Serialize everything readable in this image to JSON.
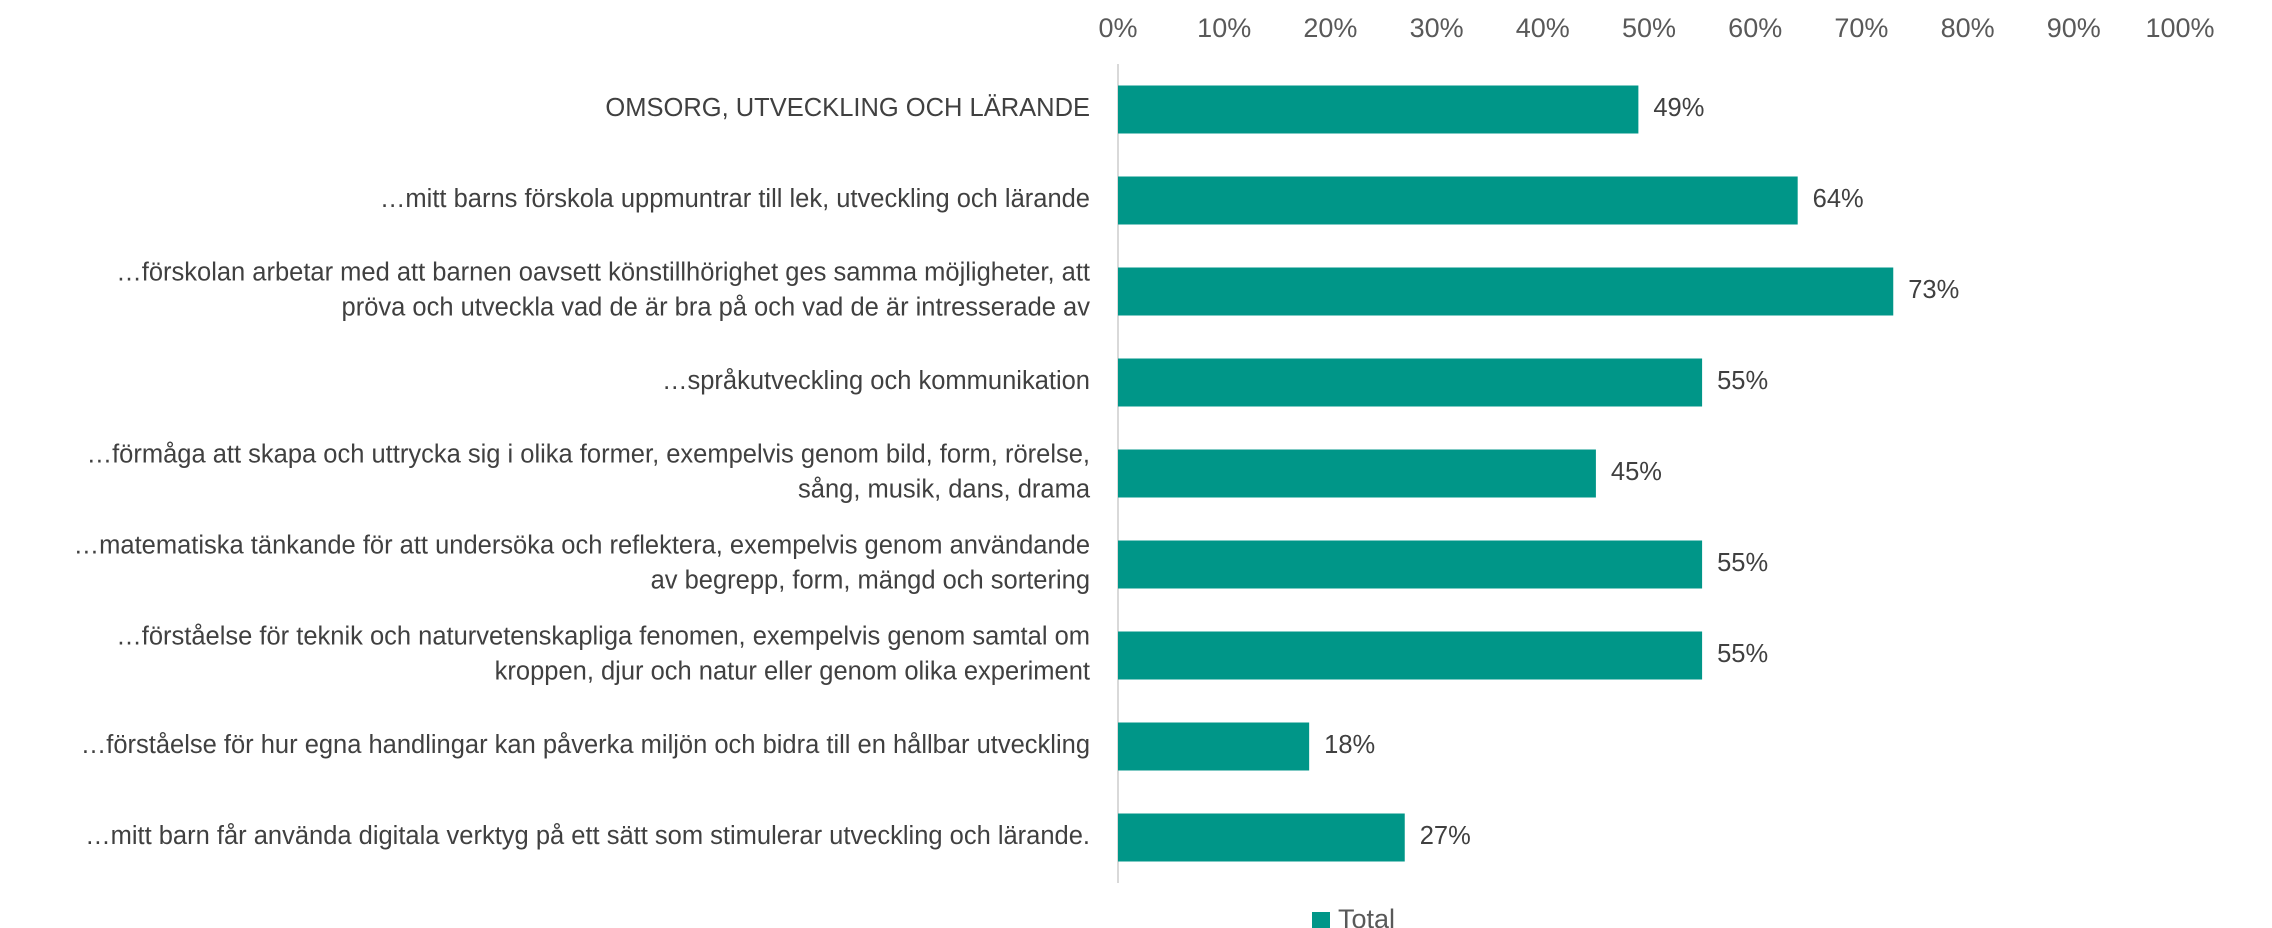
{
  "chart_data": {
    "type": "bar",
    "orientation": "horizontal",
    "xlim": [
      0,
      100
    ],
    "x_ticks": [
      "0%",
      "10%",
      "20%",
      "30%",
      "40%",
      "50%",
      "60%",
      "70%",
      "80%",
      "90%",
      "100%"
    ],
    "x_axis_position": "top",
    "grid": false,
    "legend_position": "bottom",
    "color": "#009688",
    "categories": [
      "OMSORG, UTVECKLING OCH LÄRANDE",
      "…mitt barns förskola uppmuntrar till lek, utveckling och lärande",
      "…förskolan arbetar med att barnen oavsett könstillhörighet ges samma möjligheter, att pröva och utveckla vad de är bra på och vad de är intresserade av",
      "…språkutveckling och kommunikation",
      "…förmåga att skapa och uttrycka sig i olika former, exempelvis genom bild, form, rörelse, sång, musik, dans, drama",
      "…matematiska tänkande för att undersöka och reflektera, exempelvis genom användande av begrepp, form, mängd och sortering",
      "…förståelse för teknik och naturvetenskapliga fenomen, exempelvis genom samtal om kroppen, djur och natur eller genom olika experiment",
      "…förståelse för hur egna handlingar kan påverka miljön och bidra till en hållbar utveckling",
      "…mitt barn får använda digitala verktyg på ett sätt som stimulerar utveckling och lärande."
    ],
    "category_lines": [
      [
        "OMSORG, UTVECKLING OCH LÄRANDE"
      ],
      [
        "…mitt barns förskola uppmuntrar till lek, utveckling och lärande"
      ],
      [
        "…förskolan arbetar med att barnen oavsett könstillhörighet ges samma möjligheter, att",
        "pröva och utveckla vad de är bra på och vad de är intresserade av"
      ],
      [
        "…språkutveckling och kommunikation"
      ],
      [
        "…förmåga att skapa och uttrycka sig i olika former, exempelvis genom bild, form, rörelse,",
        "sång, musik, dans, drama"
      ],
      [
        "…matematiska tänkande för att undersöka och reflektera, exempelvis genom användande",
        "av begrepp, form, mängd och sortering"
      ],
      [
        "…förståelse för teknik och naturvetenskapliga fenomen, exempelvis genom samtal om",
        "kroppen, djur och natur eller genom olika experiment"
      ],
      [
        "…förståelse för hur egna handlingar kan påverka miljön och bidra till en hållbar utveckling"
      ],
      [
        "…mitt barn får använda digitala verktyg på ett sätt som stimulerar utveckling och lärande."
      ]
    ],
    "series": [
      {
        "name": "Total",
        "values": [
          49,
          64,
          73,
          55,
          45,
          55,
          55,
          18,
          27
        ],
        "labels": [
          "49%",
          "64%",
          "73%",
          "55%",
          "45%",
          "55%",
          "55%",
          "18%",
          "27%"
        ]
      }
    ]
  }
}
